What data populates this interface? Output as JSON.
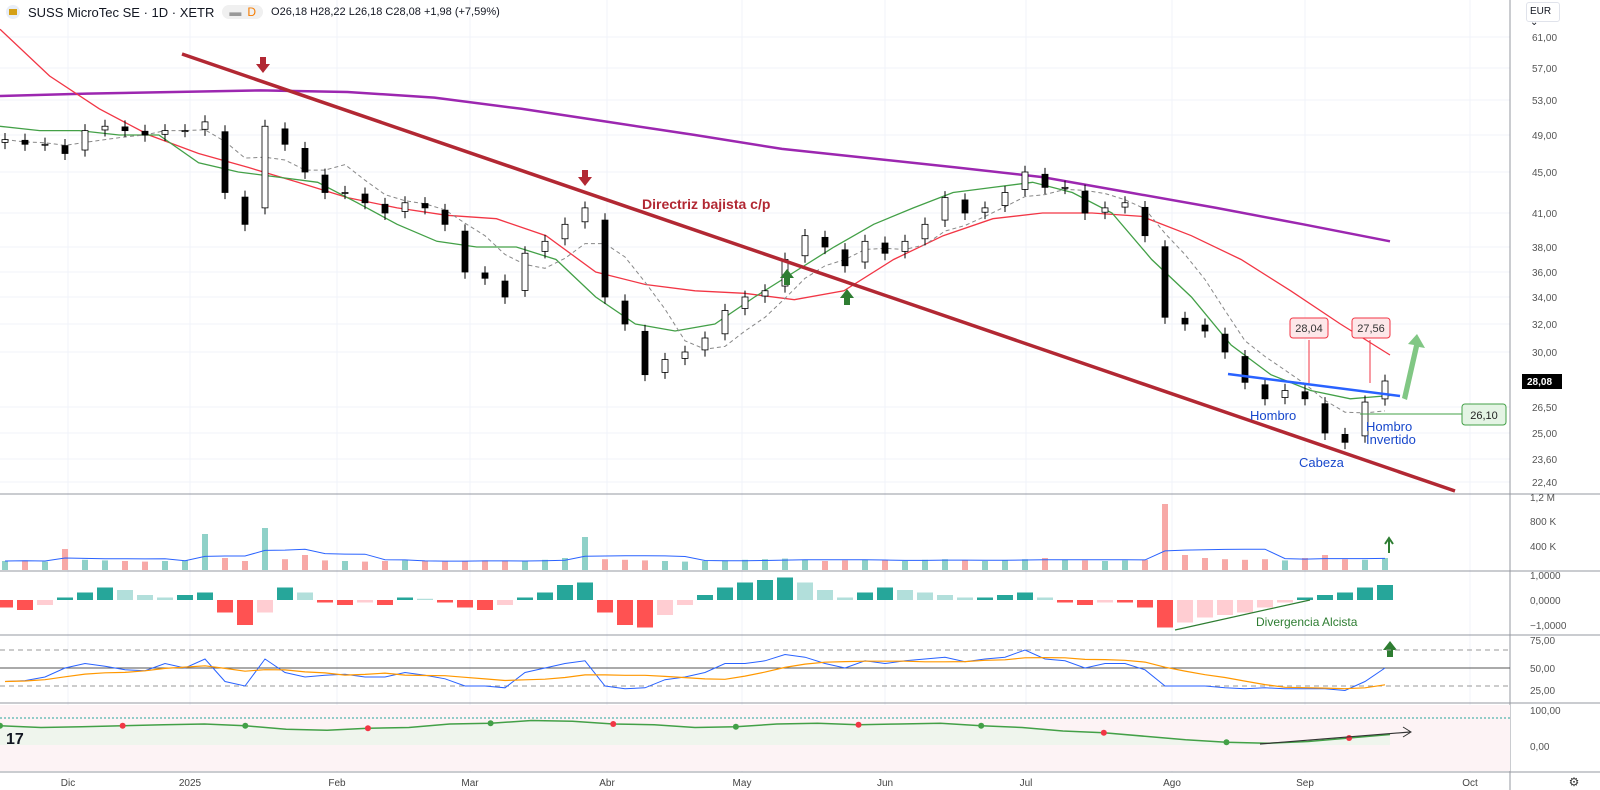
{
  "header": {
    "symbol": "SUSS MicroTec SE · 1D · XETR",
    "interval_badge": "D",
    "ohlc": "O26,18 H28,22 L26,18 C28,08 +1,98 (+7,59%)"
  },
  "currency": "EUR",
  "chart_data": [
    {
      "type": "candlestick",
      "name": "price",
      "price_ticks": [
        "61,00",
        "57,00",
        "53,00",
        "49,00",
        "45,00",
        "41,00",
        "38,00",
        "36,00",
        "34,00",
        "32,00",
        "30,00",
        "26,50",
        "25,00",
        "23,60",
        "22,40"
      ],
      "last_price_label": "28,08",
      "x_labels": [
        "Dic",
        "2025",
        "Feb",
        "Mar",
        "Abr",
        "May",
        "Jun",
        "Jul",
        "Ago",
        "Sep",
        "Oct"
      ],
      "closes": [
        48.5,
        48,
        48,
        47,
        49.5,
        50,
        49.5,
        49,
        49.5,
        49.5,
        50.5,
        43,
        40,
        50,
        48,
        45,
        43,
        43,
        42,
        41,
        42,
        41.5,
        40,
        36,
        35.5,
        34,
        37.5,
        38.5,
        40,
        41.5,
        34,
        32,
        28.5,
        29.5,
        30,
        31,
        33,
        34,
        34.5,
        37,
        39,
        38,
        36.5,
        38.5,
        37.5,
        38.5,
        40,
        42.5,
        41,
        41.5,
        43,
        45,
        43.5,
        43.5,
        41,
        41.5,
        42,
        39,
        32.5,
        32,
        31.5,
        30,
        28,
        27,
        27.5,
        27,
        25,
        24.5,
        26.8,
        28.08
      ],
      "ma200": [
        53.5,
        53.8,
        54,
        54.2,
        54,
        53.3,
        52,
        50.5,
        49,
        47.5,
        46.5,
        45.5,
        44.5,
        43,
        41.5,
        40,
        38.5
      ],
      "ma50": [
        62,
        56,
        52,
        49,
        47,
        45.5,
        44,
        42.5,
        41.5,
        40.8,
        40.5,
        39,
        36,
        35,
        34.5,
        34.3,
        33.8,
        34.5,
        37,
        39,
        40.5,
        41,
        41,
        40.7,
        39,
        37,
        34.5,
        32,
        29.8
      ],
      "ma20": [
        50,
        49.5,
        49.5,
        49,
        49,
        46,
        45,
        44.5,
        44,
        42,
        40,
        38.5,
        38,
        38,
        37,
        34,
        32,
        31.5,
        32,
        34,
        36,
        38,
        40,
        41.5,
        43,
        43.5,
        44,
        43,
        41,
        37,
        34,
        30.5,
        28.5,
        27.5,
        27,
        27.2
      ],
      "annotations": {
        "trendline": "Directriz bajista c/p",
        "shoulder_left": "Hombro",
        "head": "Cabeza",
        "shoulder_right": "Hombro Invertido",
        "label_high1": "28,04",
        "label_high2": "27,56",
        "support": "26,10"
      }
    },
    {
      "type": "bar",
      "name": "volume",
      "ticks": [
        "1,2 M",
        "800 K",
        "400 K"
      ],
      "values": [
        150,
        160,
        140,
        350,
        170,
        160,
        150,
        140,
        150,
        160,
        600,
        200,
        150,
        700,
        180,
        250,
        160,
        150,
        140,
        150,
        160,
        150,
        140,
        150,
        160,
        150,
        150,
        170,
        200,
        550,
        180,
        170,
        160,
        150,
        140,
        150,
        160,
        170,
        180,
        190,
        170,
        150,
        160,
        170,
        160,
        150,
        170,
        180,
        160,
        150,
        160,
        180,
        200,
        170,
        160,
        150,
        160,
        170,
        1100,
        250,
        200,
        180,
        170,
        180,
        160,
        200,
        250,
        180,
        170,
        200
      ]
    },
    {
      "type": "bar",
      "name": "macd_histogram",
      "ticks": [
        "1,0000",
        "0,0000",
        "−1,0000"
      ],
      "annotation": "Divergencia Alcista",
      "values": [
        -0.3,
        -0.4,
        -0.2,
        0.1,
        0.3,
        0.5,
        0.4,
        0.2,
        0.1,
        0.2,
        0.3,
        -0.5,
        -1,
        -0.5,
        0.5,
        0.3,
        -0.1,
        -0.2,
        -0.1,
        -0.2,
        0.1,
        0.05,
        -0.1,
        -0.3,
        -0.4,
        -0.2,
        0.1,
        0.3,
        0.6,
        0.7,
        -0.5,
        -1.0,
        -1.1,
        -0.6,
        -0.2,
        0.2,
        0.5,
        0.7,
        0.8,
        0.9,
        0.7,
        0.4,
        0.1,
        0.3,
        0.5,
        0.4,
        0.3,
        0.2,
        0.1,
        0.1,
        0.2,
        0.3,
        0.1,
        -0.1,
        -0.2,
        -0.1,
        -0.1,
        -0.3,
        -1.1,
        -0.9,
        -0.7,
        -0.6,
        -0.5,
        -0.3,
        -0.1,
        0.1,
        0.2,
        0.3,
        0.5,
        0.6
      ]
    },
    {
      "type": "line",
      "name": "rsi",
      "ticks": [
        "75,00",
        "50,00",
        "25,00"
      ],
      "values": [
        35,
        36,
        40,
        50,
        55,
        52,
        48,
        47,
        55,
        50,
        60,
        35,
        30,
        60,
        45,
        40,
        42,
        43,
        40,
        40,
        45,
        42,
        38,
        30,
        30,
        28,
        45,
        50,
        55,
        58,
        30,
        27,
        28,
        37,
        40,
        45,
        55,
        55,
        58,
        65,
        62,
        55,
        50,
        58,
        55,
        58,
        60,
        62,
        57,
        60,
        62,
        70,
        60,
        58,
        50,
        55,
        55,
        48,
        30,
        30,
        30,
        28,
        27,
        28,
        27,
        27,
        27,
        25,
        35,
        50
      ]
    },
    {
      "type": "line",
      "name": "oscillator",
      "ticks": [
        "100,00",
        "0,00"
      ],
      "values": [
        55,
        50,
        52,
        55,
        58,
        60,
        55,
        45,
        42,
        48,
        50,
        60,
        62,
        70,
        68,
        60,
        58,
        50,
        52,
        60,
        62,
        58,
        60,
        62,
        55,
        50,
        40,
        35,
        25,
        15,
        8,
        5,
        10,
        20,
        30
      ]
    }
  ],
  "colors": {
    "up": "#ffffff",
    "down": "#000000",
    "ma200": "#9c27b0",
    "ma50": "#f23645",
    "ma20": "#43a047",
    "trend": "#b22833",
    "neckline": "#2962ff",
    "blue_text": "#1848cc"
  }
}
